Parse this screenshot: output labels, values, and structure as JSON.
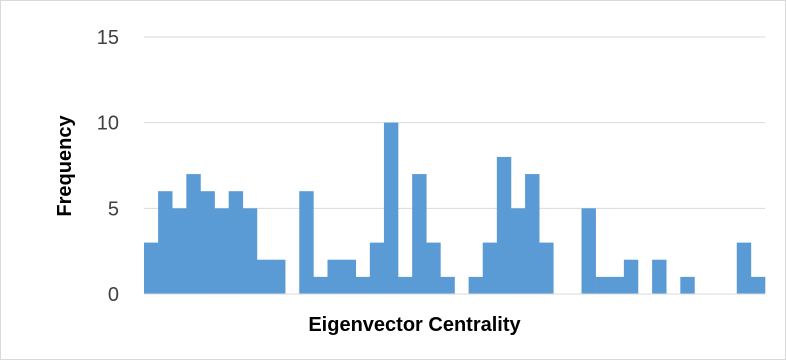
{
  "chart_data": {
    "type": "bar",
    "title": "",
    "xlabel": "Eigenvector Centrality",
    "ylabel": "Frequency",
    "ylim": [
      0,
      15
    ],
    "yticks": [
      0,
      5,
      10,
      15
    ],
    "grid": true,
    "legend": "none",
    "bar_color": "#5b9bd5",
    "gridline_color": "#d9d9d9",
    "bins": 44,
    "values": [
      3,
      6,
      5,
      7,
      6,
      5,
      6,
      5,
      2,
      2,
      0,
      6,
      1,
      2,
      2,
      1,
      3,
      10,
      1,
      7,
      3,
      1,
      0,
      1,
      3,
      8,
      5,
      7,
      3,
      0,
      0,
      5,
      1,
      1,
      2,
      0,
      2,
      0,
      1,
      0,
      0,
      0,
      3,
      1
    ]
  }
}
